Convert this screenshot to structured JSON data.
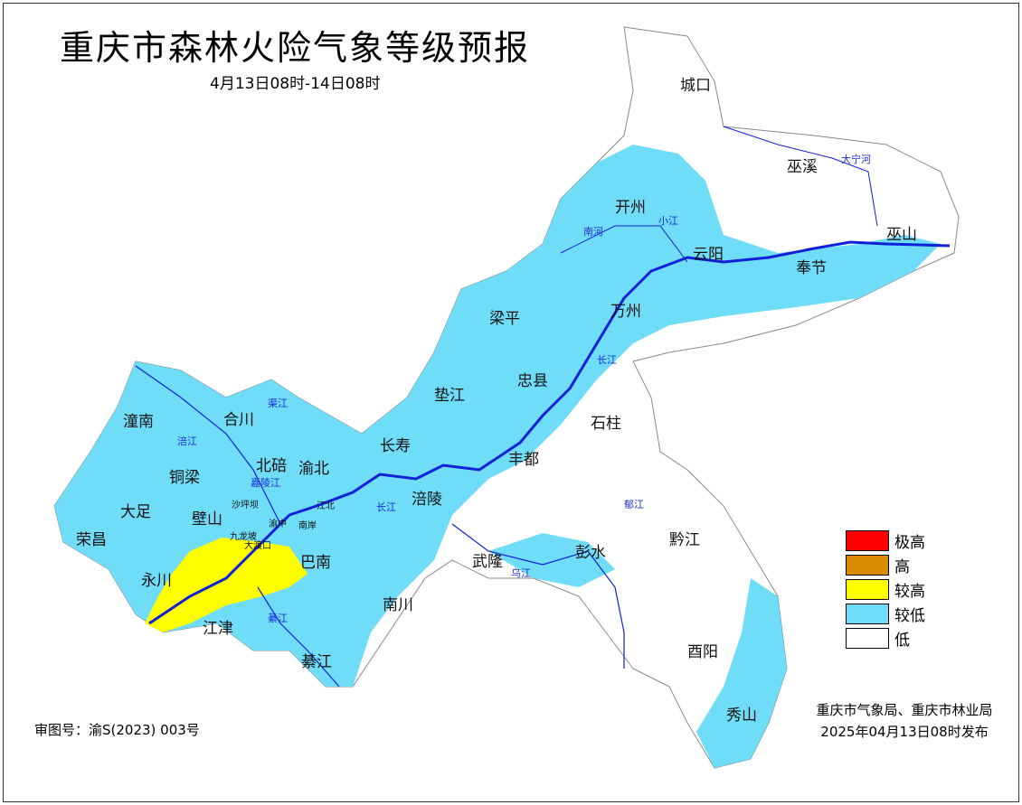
{
  "title": "重庆市森林火险气象等级预报",
  "subtitle": "4月13日08时-14日08时",
  "colors": {
    "极高": "#ff0000",
    "高": "#d98c00",
    "较高": "#ffff00",
    "较低": "#6fdcf8",
    "低": "#ffffff",
    "river": "#1020d8",
    "boundary": "#999999"
  },
  "legend": [
    {
      "label": "极高",
      "color": "#ff0000"
    },
    {
      "label": "高",
      "color": "#d98c00"
    },
    {
      "label": "较高",
      "color": "#ffff00"
    },
    {
      "label": "较低",
      "color": "#6fdcf8"
    },
    {
      "label": "低",
      "color": "#ffffff"
    }
  ],
  "districts": [
    "城口",
    "巫溪",
    "开州",
    "云阳",
    "巫山",
    "奉节",
    "梁平",
    "万州",
    "忠县",
    "垫江",
    "石柱",
    "长寿",
    "丰都",
    "潼南",
    "合川",
    "铜梁",
    "北碚",
    "渝北",
    "大足",
    "荣昌",
    "壁山",
    "涪陵",
    "永川",
    "巴南",
    "武隆",
    "彭水",
    "黔江",
    "江津",
    "南川",
    "綦江",
    "酉阳",
    "秀山"
  ],
  "urban": [
    "沙坪坝",
    "九龙坡",
    "大渡口",
    "渝中",
    "江北",
    "南岸"
  ],
  "rivers": [
    "大宁河",
    "南河",
    "小江",
    "长江",
    "涪江",
    "渠江",
    "嘉陵江",
    "长江",
    "乌江",
    "郁江",
    "綦江"
  ],
  "issuer": "重庆市气象局、重庆市林业局",
  "issued": "2025年04月13日08时发布",
  "approval": "审图号：渝S(2023) 003号"
}
